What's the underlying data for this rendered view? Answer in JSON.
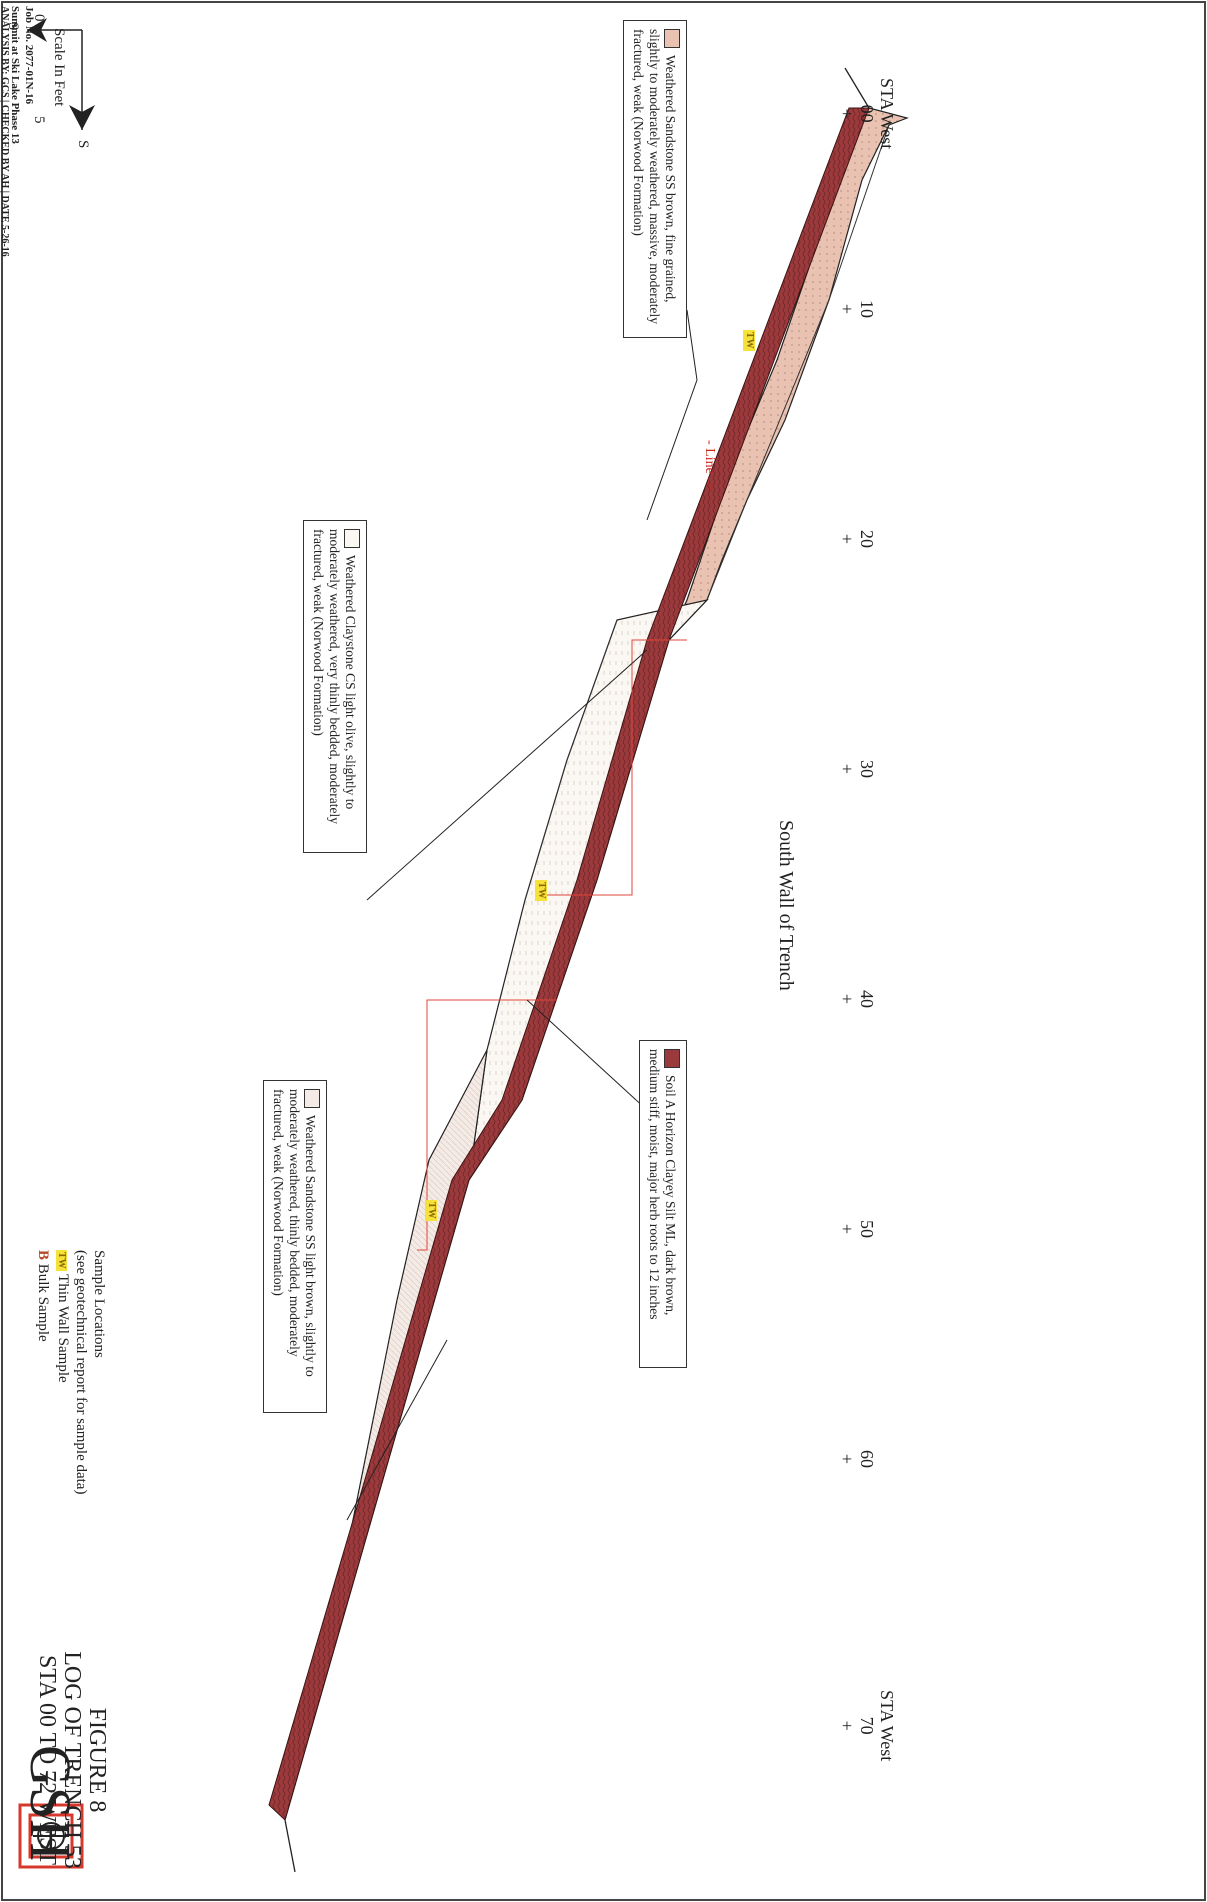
{
  "header": {
    "project": "Summit at Ski Lake Phase 13",
    "job": "Job No. 2077-01N-16"
  },
  "north_arrow": {
    "north_label": "S",
    "east_label": "S",
    "scale_min": "0",
    "scale_max": "5",
    "scale_caption": "Scale In Feet"
  },
  "title": "South Wall of Trench",
  "stations": [
    {
      "top": "STA West",
      "num": "00",
      "mark": "+"
    },
    {
      "top": "",
      "num": "10",
      "mark": "+"
    },
    {
      "top": "",
      "num": "20",
      "mark": "+"
    },
    {
      "top": "",
      "num": "30",
      "mark": "+"
    },
    {
      "top": "",
      "num": "40",
      "mark": "+"
    },
    {
      "top": "",
      "num": "50",
      "mark": "+"
    },
    {
      "top": "",
      "num": "60",
      "mark": "+"
    },
    {
      "top": "STA West",
      "num": "70",
      "mark": "+"
    }
  ],
  "line_label": "- Line ->",
  "legend": {
    "sandstone_brown": "Weathered Sandstone SS brown, fine grained, slightly to moderately weathered, massive, moderately fractured, weak (Norwood Formation)",
    "claystone": "Weathered Claystone CS light olive, slightly to moderately weathered, very thinly bedded, moderately fractured, weak (Norwood Formation)",
    "sandstone_light": "Weathered Sandstone SS light brown, slightly to moderately weathered, thinly bedded, moderately fractured, weak (Norwood Formation)",
    "soil": "Soil A Horizon Clayey Silt ML, dark brown, medium stiff, moist, major herb roots to 12 inches"
  },
  "samples": {
    "heading": "Sample Locations",
    "note": "(see geotechnical report for sample data)",
    "thin_wall_code": "TW",
    "thin_wall_label": "Thin Wall Sample",
    "bulk_code": "B",
    "bulk_label": "Bulk Sample"
  },
  "figure": {
    "line1": "FIGURE 8",
    "line2": "LOG OF TRENCH 53",
    "line3": "STA 00 TO 72 WEST"
  },
  "company": {
    "logo_text": "GSH",
    "logo_symbol": "Φ"
  },
  "footer": "ANALYSIS BY: GCS | CHECKED BY AH | DATE 5-26-16",
  "colors": {
    "soil": "#9b3a3c",
    "sandstone_brown": "#e9c2b2",
    "claystone": "#fbf7f2",
    "sandstone_light": "#f4ebe6",
    "sample_line": "#e0443a",
    "logo": "#d6392c"
  }
}
